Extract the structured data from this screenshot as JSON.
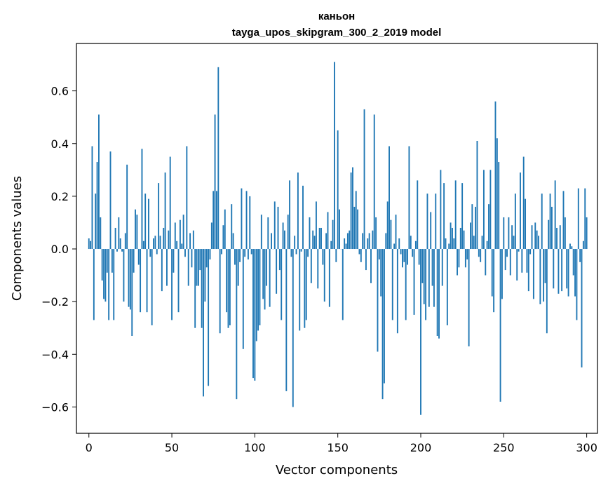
{
  "chart_data": {
    "type": "bar",
    "title": "каньон",
    "subtitle": "tayga_upos_skipgram_300_2_2019 model",
    "xlabel": "Vector components",
    "ylabel": "Components values",
    "xlim": [
      -7.5,
      306.5
    ],
    "ylim": [
      -0.7,
      0.78
    ],
    "x_ticks": [
      {
        "value": 0,
        "label": "0"
      },
      {
        "value": 50,
        "label": "50"
      },
      {
        "value": 100,
        "label": "100"
      },
      {
        "value": 150,
        "label": "150"
      },
      {
        "value": 200,
        "label": "200"
      },
      {
        "value": 250,
        "label": "250"
      },
      {
        "value": 300,
        "label": "300"
      }
    ],
    "y_ticks": [
      {
        "value": -0.6,
        "label": "−0.6"
      },
      {
        "value": -0.4,
        "label": "−0.4"
      },
      {
        "value": -0.2,
        "label": "−0.2"
      },
      {
        "value": 0.0,
        "label": "0.0"
      },
      {
        "value": 0.2,
        "label": "0.2"
      },
      {
        "value": 0.4,
        "label": "0.4"
      },
      {
        "value": 0.6,
        "label": "0.6"
      }
    ],
    "grid": false,
    "bar_color": "#1f77b4",
    "values": [
      0.04,
      0.03,
      0.39,
      -0.27,
      0.21,
      0.33,
      0.51,
      0.12,
      -0.12,
      -0.19,
      -0.2,
      -0.09,
      -0.27,
      0.37,
      -0.09,
      -0.27,
      0.08,
      -0.01,
      0.12,
      0.04,
      -0.01,
      -0.2,
      0.06,
      0.32,
      -0.22,
      -0.23,
      -0.33,
      -0.09,
      0.15,
      0.13,
      -0.06,
      -0.24,
      0.38,
      0.03,
      0.21,
      -0.24,
      0.19,
      -0.03,
      -0.29,
      0.04,
      0.05,
      -0.02,
      0.25,
      0.05,
      -0.16,
      0.08,
      0.29,
      -0.14,
      0.07,
      0.35,
      -0.27,
      -0.09,
      0.1,
      0.03,
      -0.24,
      0.11,
      0.02,
      0.13,
      -0.03,
      0.39,
      -0.14,
      0.06,
      -0.07,
      0.07,
      -0.3,
      -0.14,
      -0.14,
      -0.08,
      -0.3,
      -0.56,
      -0.2,
      -0.07,
      -0.52,
      -0.04,
      0.1,
      0.22,
      0.51,
      0.22,
      0.69,
      -0.32,
      -0.02,
      0.09,
      0.15,
      -0.24,
      -0.3,
      -0.29,
      0.17,
      0.06,
      -0.06,
      -0.57,
      -0.14,
      -0.05,
      0.23,
      -0.38,
      -0.03,
      0.22,
      -0.04,
      0.2,
      -0.02,
      -0.49,
      -0.5,
      -0.35,
      -0.31,
      -0.29,
      0.13,
      -0.19,
      -0.23,
      -0.14,
      0.12,
      -0.22,
      0.06,
      0.0,
      0.18,
      -0.17,
      0.16,
      -0.08,
      -0.27,
      0.1,
      0.07,
      -0.54,
      0.13,
      0.26,
      -0.03,
      -0.6,
      0.05,
      -0.02,
      0.29,
      -0.31,
      -0.01,
      0.24,
      -0.3,
      -0.27,
      -0.03,
      0.12,
      -0.13,
      0.07,
      0.05,
      0.18,
      -0.15,
      0.08,
      0.08,
      -0.06,
      -0.2,
      0.06,
      0.14,
      -0.22,
      0.03,
      0.11,
      0.71,
      -0.05,
      0.45,
      0.15,
      0.0,
      -0.27,
      0.04,
      0.02,
      0.06,
      0.07,
      0.29,
      0.31,
      0.16,
      0.22,
      0.15,
      -0.02,
      -0.05,
      0.06,
      0.53,
      -0.08,
      0.04,
      0.06,
      -0.13,
      0.07,
      0.51,
      0.12,
      -0.39,
      -0.04,
      -0.18,
      -0.57,
      -0.51,
      0.06,
      0.18,
      0.39,
      0.11,
      -0.27,
      0.02,
      0.13,
      -0.32,
      0.04,
      -0.02,
      -0.07,
      -0.05,
      -0.27,
      -0.06,
      0.39,
      0.05,
      -0.03,
      -0.25,
      0.03,
      0.26,
      -0.06,
      -0.63,
      -0.13,
      -0.21,
      -0.27,
      0.21,
      -0.22,
      0.14,
      -0.14,
      -0.22,
      0.21,
      -0.33,
      -0.34,
      0.3,
      -0.14,
      0.25,
      0.04,
      -0.29,
      0.02,
      0.1,
      0.08,
      0.04,
      0.26,
      -0.1,
      -0.07,
      0.08,
      0.25,
      0.07,
      -0.07,
      -0.04,
      -0.37,
      0.1,
      0.17,
      0.05,
      0.16,
      0.41,
      -0.03,
      -0.05,
      0.05,
      0.3,
      -0.1,
      0.03,
      0.17,
      0.3,
      -0.18,
      -0.24,
      0.56,
      0.42,
      0.33,
      -0.58,
      -0.19,
      0.12,
      -0.08,
      -0.03,
      0.12,
      -0.1,
      0.09,
      0.05,
      0.21,
      -0.12,
      -0.01,
      0.29,
      -0.09,
      0.35,
      0.19,
      -0.09,
      -0.16,
      -0.02,
      0.09,
      -0.19,
      0.1,
      0.07,
      0.05,
      -0.21,
      0.21,
      -0.2,
      -0.13,
      -0.32,
      0.11,
      0.21,
      0.16,
      -0.15,
      0.26,
      0.08,
      -0.17,
      0.09,
      -0.16,
      0.22,
      0.12,
      -0.15,
      -0.18,
      0.02,
      0.01,
      -0.1,
      -0.18,
      -0.27,
      0.23,
      -0.05,
      -0.45,
      0.03,
      0.23,
      0.12
    ]
  }
}
